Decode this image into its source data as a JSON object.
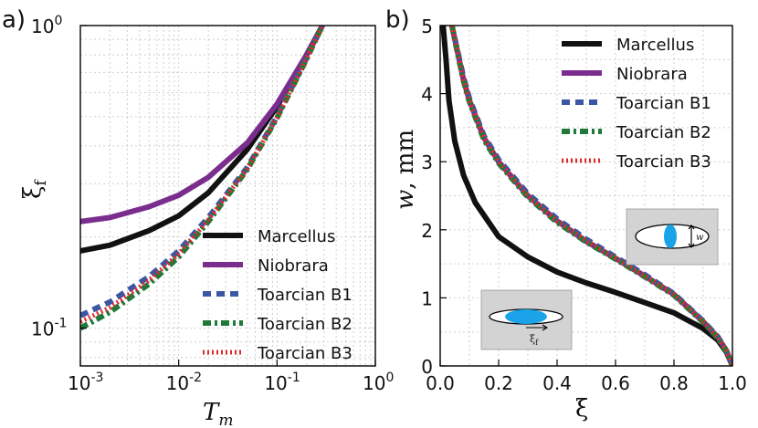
{
  "chart_data": [
    {
      "type": "line",
      "panel_label": "a)",
      "xscale": "log",
      "yscale": "log",
      "xlim": [
        0.001,
        1
      ],
      "ylim": [
        0.075,
        1
      ],
      "xticks": [
        {
          "value": 0.001,
          "base": "10",
          "exp": "-3"
        },
        {
          "value": 0.01,
          "base": "10",
          "exp": "-2"
        },
        {
          "value": 0.1,
          "base": "10",
          "exp": "-1"
        },
        {
          "value": 1,
          "base": "10",
          "exp": "0"
        }
      ],
      "yticks": [
        {
          "value": 0.1,
          "base": "10",
          "exp": "-1"
        },
        {
          "value": 1,
          "base": "10",
          "exp": "0"
        }
      ],
      "xlabel": {
        "main": "T",
        "sub": "m"
      },
      "ylabel": {
        "main": "ξ",
        "sub": "f"
      },
      "grid": true,
      "legend_position": "lower-right",
      "series": [
        {
          "name": "Marcellus",
          "color": "#111111",
          "style": "solid",
          "x": [
            0.001,
            0.002,
            0.005,
            0.01,
            0.02,
            0.05,
            0.1,
            0.2,
            0.29
          ],
          "y": [
            0.18,
            0.188,
            0.21,
            0.235,
            0.28,
            0.39,
            0.54,
            0.8,
            1.0
          ]
        },
        {
          "name": "Niobrara",
          "color": "#7b2d8e",
          "style": "solid",
          "x": [
            0.001,
            0.002,
            0.005,
            0.01,
            0.02,
            0.05,
            0.1,
            0.2,
            0.29
          ],
          "y": [
            0.225,
            0.232,
            0.252,
            0.275,
            0.315,
            0.41,
            0.55,
            0.8,
            1.0
          ]
        },
        {
          "name": "Toarcian B1",
          "color": "#3b56a3",
          "style": "dashed",
          "x": [
            0.001,
            0.002,
            0.005,
            0.01,
            0.02,
            0.05,
            0.1,
            0.2,
            0.29
          ],
          "y": [
            0.11,
            0.122,
            0.148,
            0.18,
            0.232,
            0.34,
            0.5,
            0.78,
            1.0
          ]
        },
        {
          "name": "Toarcian B2",
          "color": "#1f7a3a",
          "style": "dashdot",
          "x": [
            0.001,
            0.002,
            0.005,
            0.01,
            0.02,
            0.05,
            0.1,
            0.2,
            0.29
          ],
          "y": [
            0.1,
            0.113,
            0.14,
            0.172,
            0.225,
            0.335,
            0.495,
            0.775,
            1.0
          ]
        },
        {
          "name": "Toarcian B3",
          "color": "#e02b2b",
          "style": "dotted",
          "x": [
            0.001,
            0.002,
            0.005,
            0.01,
            0.02,
            0.05,
            0.1,
            0.2,
            0.29
          ],
          "y": [
            0.105,
            0.117,
            0.144,
            0.176,
            0.228,
            0.337,
            0.497,
            0.777,
            1.0
          ]
        }
      ]
    },
    {
      "type": "line",
      "panel_label": "b)",
      "xlim": [
        0,
        1
      ],
      "ylim": [
        0,
        5
      ],
      "xticks": [
        "0.0",
        "0.2",
        "0.4",
        "0.6",
        "0.8",
        "1.0"
      ],
      "yticks": [
        "0",
        "1",
        "2",
        "3",
        "4",
        "5"
      ],
      "xlabel": "ξ",
      "ylabel": {
        "var": "w",
        "unit": ", mm"
      },
      "grid": true,
      "legend_position": "top-right",
      "inset_labels": {
        "width_symbol": "w",
        "xi_symbol": "ξ",
        "xi_sub": "f"
      },
      "series": [
        {
          "name": "Marcellus",
          "color": "#111111",
          "style": "solid",
          "x": [
            0.01,
            0.02,
            0.03,
            0.05,
            0.08,
            0.12,
            0.2,
            0.3,
            0.4,
            0.5,
            0.6,
            0.7,
            0.8,
            0.9,
            0.95,
            0.98,
            1.0
          ],
          "y": [
            5.0,
            4.5,
            3.9,
            3.3,
            2.8,
            2.4,
            1.9,
            1.6,
            1.38,
            1.22,
            1.08,
            0.93,
            0.78,
            0.55,
            0.38,
            0.2,
            0.0
          ]
        },
        {
          "name": "Niobrara",
          "color": "#7b2d8e",
          "style": "solid",
          "x": [
            0.04,
            0.06,
            0.08,
            0.1,
            0.15,
            0.2,
            0.3,
            0.4,
            0.5,
            0.6,
            0.7,
            0.8,
            0.9,
            0.95,
            0.98,
            1.0
          ],
          "y": [
            5.0,
            4.6,
            4.2,
            3.9,
            3.35,
            3.0,
            2.5,
            2.13,
            1.83,
            1.58,
            1.32,
            1.05,
            0.65,
            0.42,
            0.22,
            0.0
          ]
        },
        {
          "name": "Toarcian B1",
          "color": "#3b56a3",
          "style": "dashed",
          "x": [
            0.04,
            0.06,
            0.08,
            0.1,
            0.15,
            0.2,
            0.3,
            0.4,
            0.5,
            0.6,
            0.7,
            0.8,
            0.9,
            0.95,
            0.98,
            1.0
          ],
          "y": [
            5.0,
            4.62,
            4.24,
            3.93,
            3.38,
            3.03,
            2.53,
            2.16,
            1.86,
            1.6,
            1.34,
            1.06,
            0.66,
            0.43,
            0.22,
            0.0
          ]
        },
        {
          "name": "Toarcian B2",
          "color": "#1f7a3a",
          "style": "dashdot",
          "x": [
            0.04,
            0.06,
            0.08,
            0.1,
            0.15,
            0.2,
            0.3,
            0.4,
            0.5,
            0.6,
            0.7,
            0.8,
            0.9,
            0.95,
            0.98,
            1.0
          ],
          "y": [
            5.0,
            4.58,
            4.18,
            3.88,
            3.32,
            2.98,
            2.48,
            2.11,
            1.82,
            1.57,
            1.31,
            1.04,
            0.64,
            0.41,
            0.21,
            0.0
          ]
        },
        {
          "name": "Toarcian B3",
          "color": "#e02b2b",
          "style": "dotted",
          "x": [
            0.04,
            0.06,
            0.08,
            0.1,
            0.15,
            0.2,
            0.3,
            0.4,
            0.5,
            0.6,
            0.7,
            0.8,
            0.9,
            0.95,
            0.98,
            1.0
          ],
          "y": [
            5.0,
            4.6,
            4.2,
            3.9,
            3.35,
            3.0,
            2.5,
            2.13,
            1.84,
            1.58,
            1.32,
            1.05,
            0.65,
            0.42,
            0.22,
            0.0
          ]
        }
      ]
    }
  ]
}
